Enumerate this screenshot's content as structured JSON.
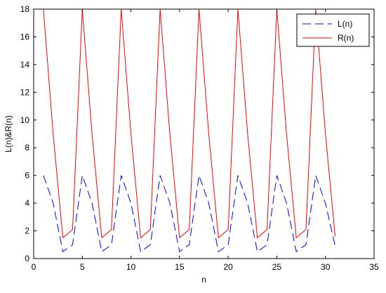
{
  "chart_data": {
    "type": "line",
    "xlabel": "n",
    "ylabel": "L(n)&R(n)",
    "xlim": [
      0,
      35
    ],
    "ylim": [
      0,
      18
    ],
    "xticks": [
      0,
      5,
      10,
      15,
      20,
      25,
      30,
      35
    ],
    "yticks": [
      0,
      2,
      4,
      6,
      8,
      10,
      12,
      14,
      16,
      18
    ],
    "grid": false,
    "legend_position": "top-right",
    "x": [
      1,
      2,
      3,
      4,
      5,
      6,
      7,
      8,
      9,
      10,
      11,
      12,
      13,
      14,
      15,
      16,
      17,
      18,
      19,
      20,
      21,
      22,
      23,
      24,
      25,
      26,
      27,
      28,
      29,
      30,
      31
    ],
    "series": [
      {
        "name": "L(n)",
        "color": "#0000ff",
        "style": "dashed",
        "values": [
          6,
          4,
          0.5,
          1,
          6,
          4,
          0.5,
          1,
          6,
          4,
          0.5,
          1,
          6,
          4,
          0.5,
          1,
          6,
          4,
          0.5,
          1,
          6,
          4,
          0.5,
          1,
          6,
          4,
          0.5,
          1,
          6,
          4,
          0.9
        ]
      },
      {
        "name": "R(n)",
        "color": "#ff0000",
        "style": "solid",
        "values": [
          18,
          9,
          1.5,
          2.1,
          18,
          9,
          1.5,
          2.1,
          18,
          9,
          1.5,
          2.1,
          18,
          9,
          1.5,
          2.1,
          18,
          9,
          1.5,
          2.1,
          18,
          9,
          1.5,
          2.1,
          18,
          9,
          1.5,
          2.1,
          18,
          9,
          1.6
        ]
      }
    ]
  }
}
